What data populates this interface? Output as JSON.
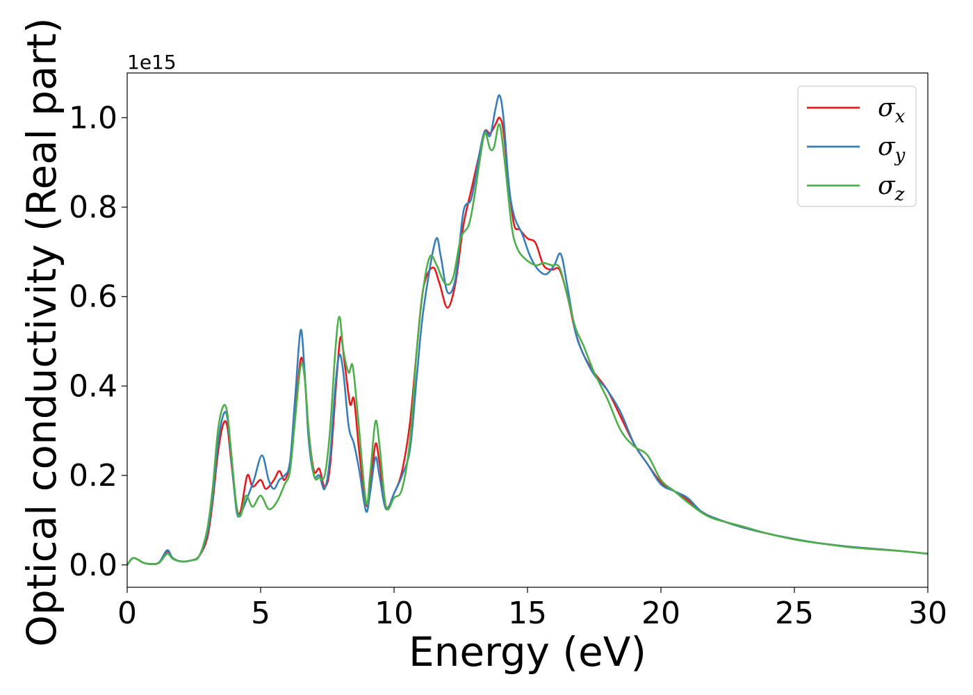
{
  "chart_data": {
    "type": "line",
    "xlabel": "Energy (eV)",
    "ylabel": "Optical conductivity (Real part)",
    "y_offset_label": "1e15",
    "xlim": [
      0,
      30
    ],
    "ylim": [
      -0.05,
      1.1
    ],
    "x_ticks": [
      0,
      5,
      10,
      15,
      20,
      25,
      30
    ],
    "x_tick_labels": [
      "0",
      "5",
      "10",
      "15",
      "20",
      "25",
      "30"
    ],
    "y_ticks": [
      0.0,
      0.2,
      0.4,
      0.6,
      0.8,
      1.0
    ],
    "y_tick_labels": [
      "0.0",
      "0.2",
      "0.4",
      "0.6",
      "0.8",
      "1.0"
    ],
    "grid": false,
    "legend_position": "top-right",
    "series": [
      {
        "name": "σ",
        "subscript": "x",
        "color": "#e41a1c",
        "points": [
          [
            0,
            0
          ],
          [
            0.2,
            0.015
          ],
          [
            0.4,
            0.012
          ],
          [
            0.6,
            0.005
          ],
          [
            0.9,
            0.002
          ],
          [
            1.2,
            0.005
          ],
          [
            1.5,
            0.03
          ],
          [
            1.7,
            0.015
          ],
          [
            2.0,
            0.008
          ],
          [
            2.4,
            0.01
          ],
          [
            2.7,
            0.02
          ],
          [
            3.0,
            0.06
          ],
          [
            3.2,
            0.14
          ],
          [
            3.4,
            0.25
          ],
          [
            3.6,
            0.315
          ],
          [
            3.75,
            0.31
          ],
          [
            3.9,
            0.23
          ],
          [
            4.1,
            0.13
          ],
          [
            4.25,
            0.12
          ],
          [
            4.5,
            0.2
          ],
          [
            4.7,
            0.175
          ],
          [
            5.0,
            0.19
          ],
          [
            5.2,
            0.17
          ],
          [
            5.5,
            0.19
          ],
          [
            5.7,
            0.21
          ],
          [
            5.9,
            0.19
          ],
          [
            6.1,
            0.23
          ],
          [
            6.3,
            0.34
          ],
          [
            6.5,
            0.46
          ],
          [
            6.65,
            0.42
          ],
          [
            6.8,
            0.3
          ],
          [
            7.0,
            0.21
          ],
          [
            7.2,
            0.215
          ],
          [
            7.4,
            0.175
          ],
          [
            7.6,
            0.22
          ],
          [
            7.85,
            0.42
          ],
          [
            8.0,
            0.51
          ],
          [
            8.15,
            0.45
          ],
          [
            8.35,
            0.36
          ],
          [
            8.5,
            0.37
          ],
          [
            8.7,
            0.25
          ],
          [
            8.95,
            0.135
          ],
          [
            9.1,
            0.17
          ],
          [
            9.3,
            0.27
          ],
          [
            9.45,
            0.23
          ],
          [
            9.7,
            0.13
          ],
          [
            10.0,
            0.16
          ],
          [
            10.3,
            0.21
          ],
          [
            10.6,
            0.32
          ],
          [
            10.85,
            0.48
          ],
          [
            11.1,
            0.62
          ],
          [
            11.45,
            0.665
          ],
          [
            11.7,
            0.63
          ],
          [
            12.0,
            0.575
          ],
          [
            12.3,
            0.63
          ],
          [
            12.6,
            0.76
          ],
          [
            12.9,
            0.84
          ],
          [
            13.2,
            0.92
          ],
          [
            13.4,
            0.97
          ],
          [
            13.6,
            0.965
          ],
          [
            13.8,
            0.985
          ],
          [
            13.95,
            1.0
          ],
          [
            14.1,
            0.97
          ],
          [
            14.3,
            0.85
          ],
          [
            14.5,
            0.76
          ],
          [
            14.7,
            0.75
          ],
          [
            15.0,
            0.73
          ],
          [
            15.3,
            0.72
          ],
          [
            15.6,
            0.67
          ],
          [
            15.9,
            0.66
          ],
          [
            16.2,
            0.66
          ],
          [
            16.5,
            0.6
          ],
          [
            16.8,
            0.52
          ],
          [
            17.1,
            0.47
          ],
          [
            17.5,
            0.43
          ],
          [
            18.0,
            0.39
          ],
          [
            18.5,
            0.33
          ],
          [
            19.0,
            0.27
          ],
          [
            19.5,
            0.225
          ],
          [
            20.0,
            0.185
          ],
          [
            20.5,
            0.165
          ],
          [
            21.0,
            0.145
          ],
          [
            21.5,
            0.12
          ],
          [
            22.0,
            0.105
          ],
          [
            23.0,
            0.085
          ],
          [
            24.0,
            0.07
          ],
          [
            25.0,
            0.057
          ],
          [
            26.0,
            0.048
          ],
          [
            27.0,
            0.041
          ],
          [
            28.0,
            0.036
          ],
          [
            29.0,
            0.031
          ],
          [
            30.0,
            0.025
          ]
        ]
      },
      {
        "name": "σ",
        "subscript": "y",
        "color": "#377eb8",
        "points": [
          [
            0,
            0
          ],
          [
            0.2,
            0.015
          ],
          [
            0.4,
            0.012
          ],
          [
            0.6,
            0.005
          ],
          [
            0.9,
            0.002
          ],
          [
            1.2,
            0.006
          ],
          [
            1.5,
            0.033
          ],
          [
            1.7,
            0.016
          ],
          [
            2.0,
            0.008
          ],
          [
            2.4,
            0.01
          ],
          [
            2.7,
            0.02
          ],
          [
            3.0,
            0.07
          ],
          [
            3.2,
            0.15
          ],
          [
            3.4,
            0.27
          ],
          [
            3.6,
            0.335
          ],
          [
            3.75,
            0.33
          ],
          [
            3.9,
            0.24
          ],
          [
            4.1,
            0.12
          ],
          [
            4.25,
            0.115
          ],
          [
            4.5,
            0.15
          ],
          [
            4.75,
            0.19
          ],
          [
            5.05,
            0.245
          ],
          [
            5.3,
            0.19
          ],
          [
            5.5,
            0.17
          ],
          [
            5.7,
            0.19
          ],
          [
            5.9,
            0.2
          ],
          [
            6.1,
            0.23
          ],
          [
            6.3,
            0.38
          ],
          [
            6.5,
            0.525
          ],
          [
            6.65,
            0.43
          ],
          [
            6.8,
            0.28
          ],
          [
            7.0,
            0.2
          ],
          [
            7.2,
            0.2
          ],
          [
            7.4,
            0.17
          ],
          [
            7.6,
            0.24
          ],
          [
            7.8,
            0.4
          ],
          [
            7.95,
            0.47
          ],
          [
            8.1,
            0.43
          ],
          [
            8.3,
            0.31
          ],
          [
            8.5,
            0.27
          ],
          [
            8.7,
            0.21
          ],
          [
            8.95,
            0.12
          ],
          [
            9.1,
            0.16
          ],
          [
            9.3,
            0.24
          ],
          [
            9.45,
            0.2
          ],
          [
            9.7,
            0.125
          ],
          [
            10.0,
            0.16
          ],
          [
            10.3,
            0.2
          ],
          [
            10.6,
            0.26
          ],
          [
            10.85,
            0.42
          ],
          [
            11.1,
            0.57
          ],
          [
            11.55,
            0.725
          ],
          [
            11.75,
            0.69
          ],
          [
            12.0,
            0.61
          ],
          [
            12.3,
            0.64
          ],
          [
            12.6,
            0.79
          ],
          [
            12.9,
            0.82
          ],
          [
            13.2,
            0.92
          ],
          [
            13.4,
            0.97
          ],
          [
            13.6,
            0.96
          ],
          [
            13.8,
            1.02
          ],
          [
            13.95,
            1.05
          ],
          [
            14.1,
            1.0
          ],
          [
            14.3,
            0.85
          ],
          [
            14.5,
            0.78
          ],
          [
            14.8,
            0.74
          ],
          [
            15.1,
            0.69
          ],
          [
            15.4,
            0.66
          ],
          [
            15.7,
            0.65
          ],
          [
            16.0,
            0.67
          ],
          [
            16.25,
            0.695
          ],
          [
            16.5,
            0.62
          ],
          [
            16.8,
            0.52
          ],
          [
            17.1,
            0.47
          ],
          [
            17.5,
            0.425
          ],
          [
            18.0,
            0.39
          ],
          [
            18.5,
            0.34
          ],
          [
            19.0,
            0.27
          ],
          [
            19.5,
            0.225
          ],
          [
            20.0,
            0.18
          ],
          [
            20.5,
            0.165
          ],
          [
            21.0,
            0.15
          ],
          [
            21.5,
            0.12
          ],
          [
            22.0,
            0.105
          ],
          [
            23.0,
            0.085
          ],
          [
            24.0,
            0.07
          ],
          [
            25.0,
            0.058
          ],
          [
            26.0,
            0.048
          ],
          [
            27.0,
            0.041
          ],
          [
            28.0,
            0.036
          ],
          [
            29.0,
            0.031
          ],
          [
            30.0,
            0.025
          ]
        ]
      },
      {
        "name": "σ",
        "subscript": "z",
        "color": "#4daf4a",
        "points": [
          [
            0,
            0
          ],
          [
            0.2,
            0.015
          ],
          [
            0.4,
            0.012
          ],
          [
            0.6,
            0.005
          ],
          [
            0.9,
            0.002
          ],
          [
            1.2,
            0.005
          ],
          [
            1.5,
            0.025
          ],
          [
            1.7,
            0.014
          ],
          [
            2.0,
            0.008
          ],
          [
            2.4,
            0.01
          ],
          [
            2.7,
            0.02
          ],
          [
            3.0,
            0.08
          ],
          [
            3.2,
            0.17
          ],
          [
            3.4,
            0.3
          ],
          [
            3.6,
            0.355
          ],
          [
            3.75,
            0.34
          ],
          [
            3.9,
            0.25
          ],
          [
            4.1,
            0.13
          ],
          [
            4.25,
            0.11
          ],
          [
            4.45,
            0.155
          ],
          [
            4.7,
            0.13
          ],
          [
            5.0,
            0.155
          ],
          [
            5.3,
            0.125
          ],
          [
            5.6,
            0.14
          ],
          [
            5.9,
            0.18
          ],
          [
            6.1,
            0.21
          ],
          [
            6.3,
            0.33
          ],
          [
            6.5,
            0.445
          ],
          [
            6.65,
            0.42
          ],
          [
            6.8,
            0.3
          ],
          [
            7.0,
            0.2
          ],
          [
            7.2,
            0.195
          ],
          [
            7.4,
            0.2
          ],
          [
            7.6,
            0.3
          ],
          [
            7.8,
            0.48
          ],
          [
            7.95,
            0.555
          ],
          [
            8.1,
            0.48
          ],
          [
            8.3,
            0.43
          ],
          [
            8.45,
            0.445
          ],
          [
            8.65,
            0.33
          ],
          [
            8.95,
            0.14
          ],
          [
            9.1,
            0.2
          ],
          [
            9.3,
            0.32
          ],
          [
            9.45,
            0.27
          ],
          [
            9.7,
            0.13
          ],
          [
            10.0,
            0.15
          ],
          [
            10.3,
            0.17
          ],
          [
            10.6,
            0.28
          ],
          [
            10.85,
            0.48
          ],
          [
            11.1,
            0.62
          ],
          [
            11.35,
            0.69
          ],
          [
            11.6,
            0.67
          ],
          [
            11.9,
            0.63
          ],
          [
            12.2,
            0.64
          ],
          [
            12.5,
            0.73
          ],
          [
            12.8,
            0.76
          ],
          [
            13.0,
            0.82
          ],
          [
            13.2,
            0.9
          ],
          [
            13.4,
            0.965
          ],
          [
            13.6,
            0.93
          ],
          [
            13.75,
            0.935
          ],
          [
            13.95,
            0.985
          ],
          [
            14.15,
            0.9
          ],
          [
            14.4,
            0.76
          ],
          [
            14.6,
            0.71
          ],
          [
            14.9,
            0.685
          ],
          [
            15.3,
            0.67
          ],
          [
            15.6,
            0.675
          ],
          [
            15.9,
            0.67
          ],
          [
            16.2,
            0.665
          ],
          [
            16.5,
            0.6
          ],
          [
            16.8,
            0.53
          ],
          [
            17.1,
            0.49
          ],
          [
            17.5,
            0.43
          ],
          [
            18.0,
            0.37
          ],
          [
            18.5,
            0.3
          ],
          [
            19.0,
            0.265
          ],
          [
            19.5,
            0.245
          ],
          [
            20.0,
            0.19
          ],
          [
            20.5,
            0.165
          ],
          [
            21.0,
            0.14
          ],
          [
            21.5,
            0.118
          ],
          [
            22.0,
            0.103
          ],
          [
            23.0,
            0.087
          ],
          [
            24.0,
            0.07
          ],
          [
            25.0,
            0.057
          ],
          [
            26.0,
            0.048
          ],
          [
            27.0,
            0.04
          ],
          [
            28.0,
            0.035
          ],
          [
            29.0,
            0.031
          ],
          [
            30.0,
            0.025
          ]
        ]
      }
    ]
  }
}
